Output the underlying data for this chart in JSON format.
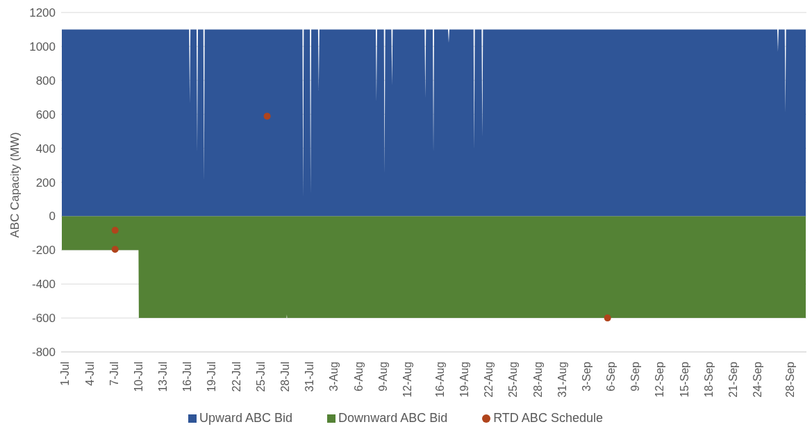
{
  "chart_data": {
    "type": "area",
    "ylabel": "ABC Capacity (MW)",
    "xlim": [
      "--06-30T12:00",
      "--09-30T00:00"
    ],
    "xticks": [
      {
        "value": "--07-01",
        "label": "1-Jul"
      },
      {
        "value": "--07-04",
        "label": "4-Jul"
      },
      {
        "value": "--07-07",
        "label": "7-Jul"
      },
      {
        "value": "--07-10",
        "label": "10-Jul"
      },
      {
        "value": "--07-13",
        "label": "13-Jul"
      },
      {
        "value": "--07-16",
        "label": "16-Jul"
      },
      {
        "value": "--07-19",
        "label": "19-Jul"
      },
      {
        "value": "--07-22",
        "label": "22-Jul"
      },
      {
        "value": "--07-25",
        "label": "25-Jul"
      },
      {
        "value": "--07-28",
        "label": "28-Jul"
      },
      {
        "value": "--07-31",
        "label": "31-Jul"
      },
      {
        "value": "--08-03",
        "label": "3-Aug"
      },
      {
        "value": "--08-06",
        "label": "6-Aug"
      },
      {
        "value": "--08-09",
        "label": "9-Aug"
      },
      {
        "value": "--08-12",
        "label": "12-Aug"
      },
      {
        "value": "--08-16",
        "label": "16-Aug"
      },
      {
        "value": "--08-19",
        "label": "19-Aug"
      },
      {
        "value": "--08-22",
        "label": "22-Aug"
      },
      {
        "value": "--08-25",
        "label": "25-Aug"
      },
      {
        "value": "--08-28",
        "label": "28-Aug"
      },
      {
        "value": "--08-31",
        "label": "31-Aug"
      },
      {
        "value": "--09-03",
        "label": "3-Sep"
      },
      {
        "value": "--09-06",
        "label": "6-Sep"
      },
      {
        "value": "--09-09",
        "label": "9-Sep"
      },
      {
        "value": "--09-12",
        "label": "12-Sep"
      },
      {
        "value": "--09-15",
        "label": "15-Sep"
      },
      {
        "value": "--09-18",
        "label": "18-Sep"
      },
      {
        "value": "--09-21",
        "label": "21-Sep"
      },
      {
        "value": "--09-24",
        "label": "24-Sep"
      },
      {
        "value": "--09-28",
        "label": "28-Sep"
      }
    ],
    "ylim": [
      -800,
      1200
    ],
    "yticks": [
      -800,
      -600,
      -400,
      -200,
      0,
      200,
      400,
      600,
      800,
      1000,
      1200
    ],
    "grid": "y",
    "legend": "bottom",
    "series": [
      {
        "name": "Upward ABC Bid",
        "color": "#2f5597",
        "x": [
          "--06-30T14:00",
          "--07-16T05:00",
          "--07-16T07:00",
          "--07-16T09:00",
          "--07-17T03:00",
          "--07-17T05:00",
          "--07-17T07:00",
          "--07-17T23:00",
          "--07-18T01:00",
          "--07-18T03:00",
          "--07-30T03:00",
          "--07-30T05:00",
          "--07-30T07:00",
          "--07-31T01:00",
          "--07-31T03:00",
          "--07-31T05:00",
          "--08-01T01:00",
          "--08-01T03:00",
          "--08-01T05:00",
          "--08-08T03:00",
          "--08-08T05:00",
          "--08-08T07:00",
          "--08-09T03:00",
          "--08-09T05:00",
          "--08-09T07:00",
          "--08-10T01:00",
          "--08-10T03:00",
          "--08-10T05:00",
          "--08-14T03:00",
          "--08-14T05:00",
          "--08-14T07:00",
          "--08-15T03:00",
          "--08-15T05:00",
          "--08-15T07:00",
          "--08-17T00:00",
          "--08-17T02:00",
          "--08-17T04:00",
          "--08-20T03:00",
          "--08-20T05:00",
          "--08-20T07:00",
          "--08-21T03:00",
          "--08-21T05:00",
          "--08-21T07:00",
          "--09-26T10:00",
          "--09-26T12:00",
          "--09-26T14:00",
          "--09-27T08:00",
          "--09-27T10:00",
          "--09-27T12:00",
          "--09-29T22:00"
        ],
        "values": [
          1100,
          1100,
          663,
          1100,
          1100,
          380,
          1100,
          1100,
          205,
          1100,
          1100,
          109,
          1100,
          1100,
          131,
          1100,
          1100,
          742,
          1100,
          1100,
          676,
          1100,
          1100,
          249,
          1100,
          1100,
          772,
          1100,
          1100,
          698,
          1100,
          1100,
          371,
          1100,
          1100,
          1021,
          1100,
          1100,
          393,
          1100,
          1100,
          467,
          1100,
          1100,
          969,
          1100,
          1100,
          611,
          1100,
          1100
        ]
      },
      {
        "name": "Downward ABC Bid",
        "color": "#548235",
        "x": [
          "--06-30T14:00",
          "--07-10T00:00",
          "--07-10T01:00",
          "--07-28T04:00",
          "--07-28T05:00",
          "--07-28T06:00",
          "--09-29T22:00"
        ],
        "values": [
          -200,
          -200,
          -600,
          -600,
          -580,
          -600,
          -600
        ]
      },
      {
        "name": "RTD ABC Schedule",
        "type": "scatter",
        "color": "#b0441c",
        "x": [
          "--07-07T03:00",
          "--07-07T03:00",
          "--07-25T19:00",
          "--09-05T14:00"
        ],
        "values": [
          -83,
          -196,
          589,
          -600
        ]
      }
    ]
  }
}
